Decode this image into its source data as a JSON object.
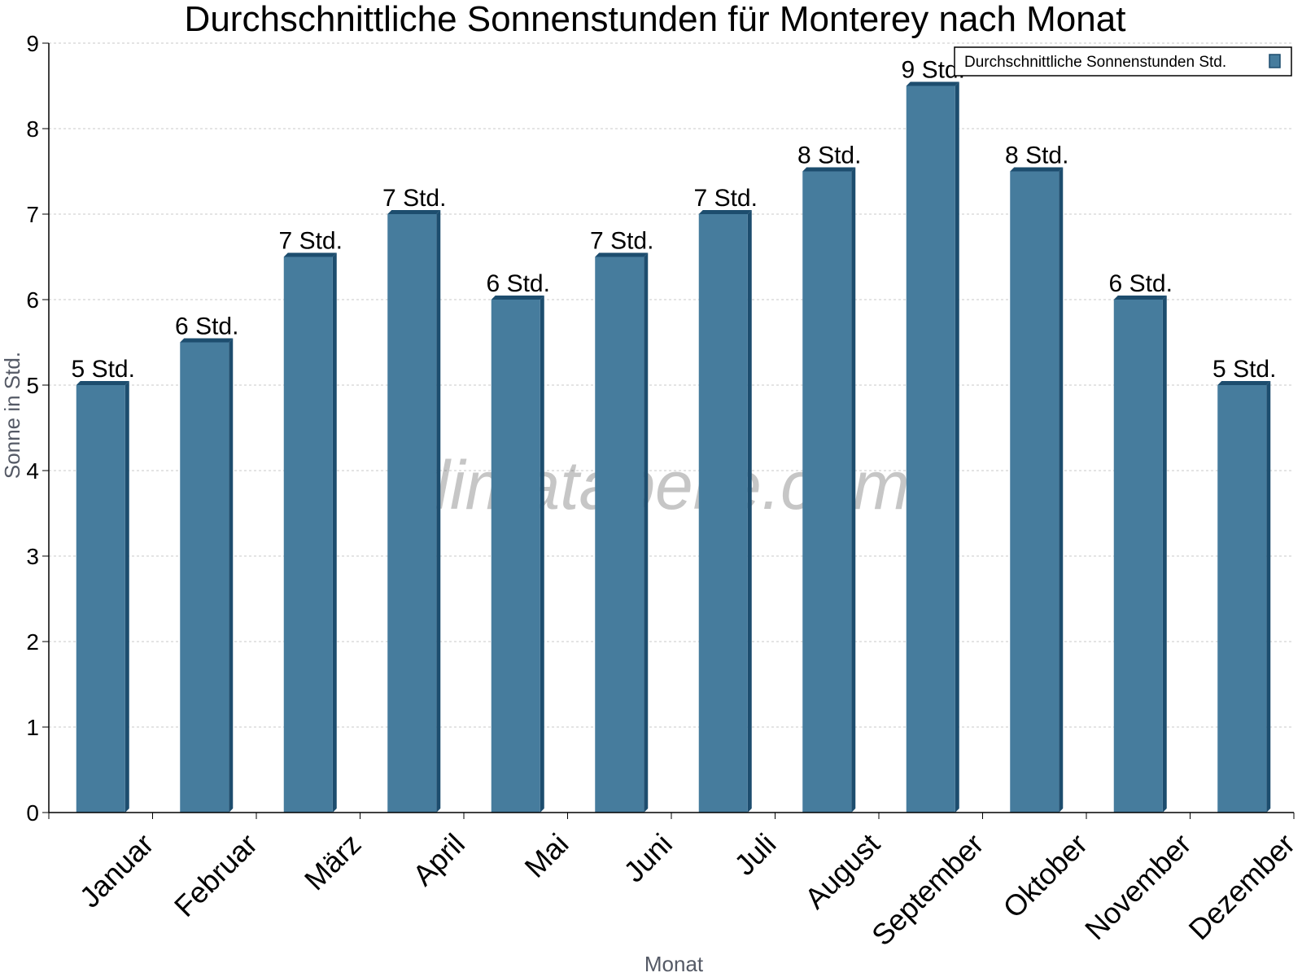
{
  "chart_data": {
    "type": "bar",
    "title": "Durchschnittliche Sonnenstunden für Monterey nach Monat",
    "xlabel": "Monat",
    "ylabel": "Sonne in Std.",
    "categories": [
      "Januar",
      "Februar",
      "März",
      "April",
      "Mai",
      "Juni",
      "Juli",
      "August",
      "September",
      "Oktober",
      "November",
      "Dezember"
    ],
    "series": [
      {
        "name": "Durchschnittliche Sonnenstunden Std.",
        "values": [
          5.0,
          5.5,
          6.5,
          7.0,
          6.0,
          6.5,
          7.0,
          7.5,
          8.5,
          7.5,
          6.0,
          5.0
        ],
        "data_labels": [
          "5 Std.",
          "6 Std.",
          "7 Std.",
          "7 Std.",
          "6 Std.",
          "7 Std.",
          "7 Std.",
          "8 Std.",
          "9 Std.",
          "8 Std.",
          "6 Std.",
          "5 Std."
        ]
      }
    ],
    "ylim": [
      0,
      9
    ],
    "yticks": [
      0,
      1,
      2,
      3,
      4,
      5,
      6,
      7,
      8,
      9
    ],
    "grid": true,
    "legend_position": "top-right",
    "colors": {
      "bar_front": "#467c9d",
      "bar_side": "#1d4d6e",
      "bar_top": "#1d4d6e",
      "grid": "#c8c8c8"
    },
    "watermark": "klimatabelle.com"
  }
}
